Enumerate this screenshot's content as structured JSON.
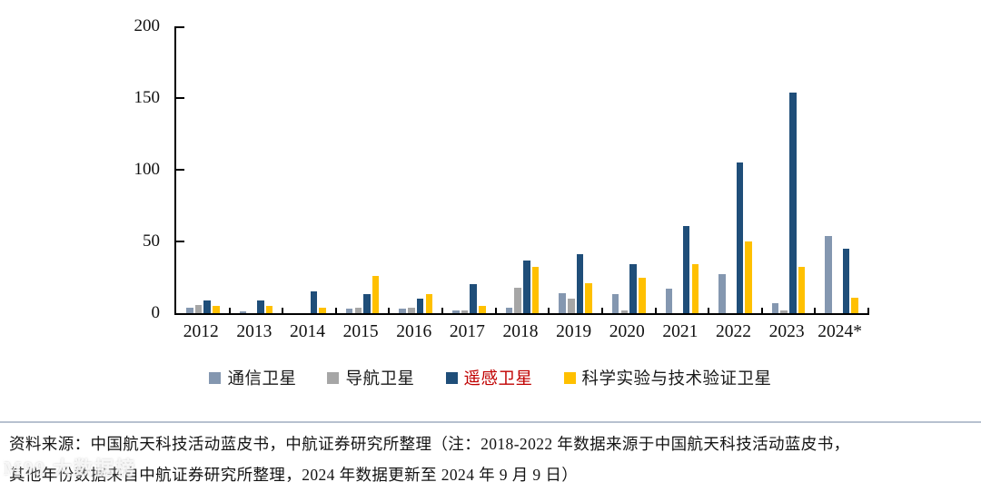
{
  "chart_data": {
    "type": "bar",
    "title": "",
    "xlabel": "",
    "ylabel": "",
    "ylim": [
      0,
      200
    ],
    "yticks": [
      0,
      50,
      100,
      150,
      200
    ],
    "grid": false,
    "legend_position": "bottom",
    "categories": [
      "2012",
      "2013",
      "2014",
      "2015",
      "2016",
      "2017",
      "2018",
      "2019",
      "2020",
      "2021",
      "2022",
      "2023",
      "2024*"
    ],
    "series": [
      {
        "name": "通信卫星",
        "color": "#8497B0",
        "label_color": "#1a1a1a",
        "values": [
          4,
          1,
          0,
          3,
          3,
          2,
          4,
          14,
          13,
          17,
          27,
          7,
          54
        ]
      },
      {
        "name": "导航卫星",
        "color": "#A6A6A6",
        "label_color": "#1a1a1a",
        "values": [
          6,
          0,
          0,
          4,
          4,
          2,
          18,
          10,
          2,
          0,
          0,
          2,
          0
        ]
      },
      {
        "name": "遥感卫星",
        "color": "#1F4E79",
        "label_color": "#C00000",
        "values": [
          9,
          9,
          15,
          13,
          10,
          20,
          37,
          41,
          34,
          61,
          105,
          154,
          45
        ]
      },
      {
        "name": "科学实验与技术验证卫星",
        "color": "#FFC000",
        "label_color": "#1a1a1a",
        "values": [
          5,
          5,
          4,
          26,
          13,
          5,
          32,
          21,
          25,
          34,
          50,
          32,
          11
        ]
      }
    ]
  },
  "footer": {
    "line1": "资料来源：中国航天科技活动蓝皮书，中航证券研究所整理（注：2018-2022 年数据来源于中国航天科技活动蓝皮书，",
    "line2": "其他年份数据来自中航证券研究所整理，2024 年数据更新至 2024 年 9 月 9 日）"
  },
  "watermark": {
    "text": "M99 大数据榜"
  }
}
